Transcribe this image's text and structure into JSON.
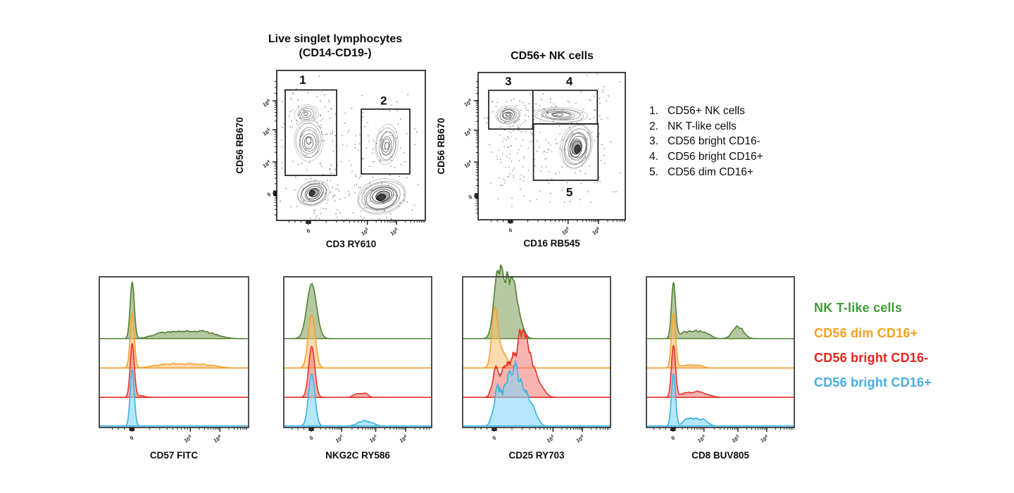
{
  "titles": {
    "plot1_line1": "Live singlet lymphocytes",
    "plot1_line2": "(CD14-CD19-)",
    "plot2": "CD56+ NK cells"
  },
  "gate_list": {
    "items": [
      {
        "num": "1.",
        "label": "CD56+ NK cells"
      },
      {
        "num": "2.",
        "label": "NK T-like cells"
      },
      {
        "num": "3.",
        "label": "CD56 bright CD16-"
      },
      {
        "num": "4.",
        "label": "CD56 bright CD16+"
      },
      {
        "num": "5.",
        "label": "CD56 dim CD16+"
      }
    ]
  },
  "legend": {
    "items": [
      {
        "label": "NK T-like cells",
        "color": "#3f9b35",
        "key": "green"
      },
      {
        "label": "CD56 dim CD16+",
        "color": "#f5a01f",
        "key": "orange"
      },
      {
        "label": "CD56 bright CD16-",
        "color": "#e8231e",
        "key": "red"
      },
      {
        "label": "CD56 bright CD16+",
        "color": "#45ade2",
        "key": "blue"
      }
    ]
  },
  "palette": {
    "green": {
      "stroke": "#4f8230",
      "fill": "rgba(110,145,70,0.50)"
    },
    "orange": {
      "stroke": "#f5a02d",
      "fill": "rgba(250,190,110,0.55)"
    },
    "red": {
      "stroke": "#e63229",
      "fill": "rgba(240,120,115,0.55)"
    },
    "blue": {
      "stroke": "#38b2e5",
      "fill": "rgba(130,215,245,0.60)"
    }
  },
  "chart_data": [
    {
      "id": "flow1",
      "type": "contour-scatter",
      "title": "Live singlet lymphocytes (CD14-CD19-)",
      "xlabel": "CD3 RY610",
      "ylabel": "CD56 RB670",
      "x_ticks": [
        {
          "label": "0",
          "pos": 0.213
        },
        {
          "label": "10",
          "exp": "5",
          "pos": 0.61
        },
        {
          "label": "10",
          "exp": "6",
          "pos": 0.807
        }
      ],
      "y_ticks": [
        {
          "label": "10",
          "exp": "6",
          "pos": 0.203
        },
        {
          "label": "10",
          "exp": "5",
          "pos": 0.396
        },
        {
          "label": "10",
          "exp": "4",
          "pos": 0.61
        },
        {
          "label": "0",
          "pos": 0.818
        }
      ],
      "gates": [
        {
          "id": "1",
          "x1": 0.057,
          "y1": 0.13,
          "x2": 0.403,
          "y2": 0.7,
          "label_x": 0.175,
          "label_y": 0.062
        },
        {
          "id": "2",
          "x1": 0.569,
          "y1": 0.258,
          "x2": 0.896,
          "y2": 0.69,
          "label_x": 0.72,
          "label_y": 0.2
        }
      ],
      "populations": [
        {
          "cx": 0.2,
          "cy": 0.29,
          "rx": 0.08,
          "ry": 0.06,
          "rot": -12,
          "rings": 5,
          "dense": 0.3,
          "dots": 35,
          "seed": 11
        },
        {
          "cx": 0.218,
          "cy": 0.475,
          "rx": 0.095,
          "ry": 0.13,
          "rot": 0,
          "rings": 7,
          "dense": 0.45,
          "dots": 55,
          "seed": 12
        },
        {
          "cx": 0.246,
          "cy": 0.82,
          "rx": 0.115,
          "ry": 0.085,
          "rot": -22,
          "rings": 8,
          "dense": 0.95,
          "dots": 70,
          "seed": 13
        },
        {
          "cx": 0.74,
          "cy": 0.495,
          "rx": 0.075,
          "ry": 0.135,
          "rot": 6,
          "rings": 7,
          "dense": 0.4,
          "dots": 55,
          "seed": 14
        },
        {
          "cx": 0.712,
          "cy": 0.84,
          "rx": 0.165,
          "ry": 0.115,
          "rot": -14,
          "rings": 9,
          "dense": 0.95,
          "dots": 80,
          "seed": 15
        }
      ],
      "scatter": [
        {
          "cx": 0.34,
          "cy": 0.46,
          "sx": 0.1,
          "sy": 0.17,
          "n": 22,
          "seed": 16
        },
        {
          "cx": 0.6,
          "cy": 0.56,
          "sx": 0.08,
          "sy": 0.14,
          "n": 15,
          "seed": 17
        }
      ]
    },
    {
      "id": "flow2",
      "type": "contour-scatter",
      "title": "CD56+ NK cells",
      "xlabel": "CD16 RB545",
      "ylabel": "CD56 RB670",
      "x_ticks": [
        {
          "label": "0",
          "pos": 0.22
        },
        {
          "label": "10",
          "exp": "5",
          "pos": 0.611
        },
        {
          "label": "10",
          "exp": "6",
          "pos": 0.818
        }
      ],
      "y_ticks": [
        {
          "label": "10",
          "exp": "6",
          "pos": 0.191
        },
        {
          "label": "10",
          "exp": "5",
          "pos": 0.392
        },
        {
          "label": "10",
          "exp": "4",
          "pos": 0.608
        },
        {
          "label": "0",
          "pos": 0.837
        }
      ],
      "gates": [
        {
          "id": "3",
          "x1": 0.072,
          "y1": 0.121,
          "x2": 0.372,
          "y2": 0.384,
          "label_x": 0.205,
          "label_y": 0.058
        },
        {
          "id": "4",
          "x1": 0.372,
          "y1": 0.121,
          "x2": 0.81,
          "y2": 0.349,
          "label_x": 0.62,
          "label_y": 0.058
        },
        {
          "id": "5",
          "x1": 0.376,
          "y1": 0.349,
          "x2": 0.815,
          "y2": 0.732,
          "label_x": 0.62,
          "label_y": 0.81
        }
      ],
      "populations": [
        {
          "cx": 0.204,
          "cy": 0.288,
          "rx": 0.085,
          "ry": 0.062,
          "rot": -8,
          "rings": 6,
          "dense": 0.8,
          "dots": 45,
          "seed": 21
        },
        {
          "cx": 0.555,
          "cy": 0.29,
          "rx": 0.19,
          "ry": 0.052,
          "rot": 2,
          "rings": 7,
          "dense": 0.4,
          "dots": 60,
          "seed": 22
        },
        {
          "cx": 0.67,
          "cy": 0.51,
          "rx": 0.105,
          "ry": 0.155,
          "rot": 12,
          "rings": 9,
          "dense": 0.85,
          "dots": 75,
          "seed": 23
        }
      ],
      "scatter": [
        {
          "cx": 0.2,
          "cy": 0.58,
          "sx": 0.06,
          "sy": 0.16,
          "n": 55,
          "seed": 24
        },
        {
          "cx": 0.42,
          "cy": 0.55,
          "sx": 0.1,
          "sy": 0.16,
          "n": 45,
          "seed": 25
        },
        {
          "cx": 0.33,
          "cy": 0.33,
          "sx": 0.1,
          "sy": 0.06,
          "n": 20,
          "seed": 26
        }
      ]
    },
    {
      "id": "hist0",
      "type": "ridgeline-histogram",
      "xlabel": "CD57 FITC",
      "x_ticks": [
        {
          "label": "0",
          "pos": 0.218
        },
        {
          "label": "10",
          "exp": "5",
          "pos": 0.61
        },
        {
          "label": "10",
          "exp": "6",
          "pos": 0.808
        }
      ],
      "rows": [
        {
          "series": "NK T-like cells",
          "color_key": "green",
          "peaks": [
            {
              "c": 0.218,
              "h": 1.0,
              "w": 0.014
            },
            {
              "c": 0.58,
              "h": 0.13,
              "w": 0.2,
              "noise": 1,
              "flat": 1
            }
          ]
        },
        {
          "series": "CD56 dim CD16+",
          "color_key": "orange",
          "peaks": [
            {
              "c": 0.218,
              "h": 0.97,
              "w": 0.014
            },
            {
              "c": 0.57,
              "h": 0.07,
              "w": 0.2,
              "noise": 1,
              "flat": 1
            }
          ]
        },
        {
          "series": "CD56 bright CD16-",
          "color_key": "red",
          "peaks": [
            {
              "c": 0.218,
              "h": 0.95,
              "w": 0.014
            },
            {
              "c": 0.27,
              "h": 0.03,
              "w": 0.03
            }
          ]
        },
        {
          "series": "CD56 bright CD16+",
          "color_key": "blue",
          "peaks": [
            {
              "c": 0.218,
              "h": 1.0,
              "w": 0.014
            }
          ]
        }
      ]
    },
    {
      "id": "hist1",
      "type": "ridgeline-histogram",
      "xlabel": "NKG2C RY586",
      "x_ticks": [
        {
          "label": "0",
          "pos": 0.186
        },
        {
          "label": "10",
          "exp": "4",
          "pos": 0.392
        },
        {
          "label": "10",
          "exp": "5",
          "pos": 0.622
        },
        {
          "label": "10",
          "exp": "6",
          "pos": 0.825
        }
      ],
      "rows": [
        {
          "series": "NK T-like cells",
          "color_key": "green",
          "peaks": [
            {
              "c": 0.186,
              "h": 0.97,
              "w": 0.033
            }
          ]
        },
        {
          "series": "CD56 dim CD16+",
          "color_key": "orange",
          "peaks": [
            {
              "c": 0.186,
              "h": 0.95,
              "w": 0.024
            }
          ]
        },
        {
          "series": "CD56 bright CD16-",
          "color_key": "red",
          "peaks": [
            {
              "c": 0.186,
              "h": 0.9,
              "w": 0.021
            },
            {
              "c": 0.52,
              "h": 0.07,
              "w": 0.05,
              "noise": 1,
              "flat": 1
            }
          ]
        },
        {
          "series": "CD56 bright CD16+",
          "color_key": "blue",
          "peaks": [
            {
              "c": 0.186,
              "h": 0.92,
              "w": 0.022
            },
            {
              "c": 0.55,
              "h": 0.1,
              "w": 0.045,
              "noise": 1
            }
          ]
        }
      ]
    },
    {
      "id": "hist2",
      "type": "ridgeline-histogram",
      "xlabel": "CD25 RY703",
      "x_ticks": [
        {
          "label": "0",
          "pos": 0.214
        },
        {
          "label": "10",
          "exp": "5",
          "pos": 0.611
        },
        {
          "label": "10",
          "exp": "6",
          "pos": 0.81
        }
      ],
      "rows": [
        {
          "series": "NK T-like cells",
          "color_key": "green",
          "peaks": [
            {
              "c": 0.225,
              "h": 0.6,
              "w": 0.025
            },
            {
              "c": 0.27,
              "h": 0.92,
              "w": 0.035,
              "noise": 1
            },
            {
              "c": 0.33,
              "h": 0.7,
              "w": 0.035,
              "noise": 1
            },
            {
              "c": 0.38,
              "h": 0.25,
              "w": 0.03
            }
          ]
        },
        {
          "series": "CD56 dim CD16+",
          "color_key": "orange",
          "peaks": [
            {
              "c": 0.214,
              "h": 0.95,
              "w": 0.02
            },
            {
              "c": 0.26,
              "h": 0.3,
              "w": 0.035
            }
          ]
        },
        {
          "series": "CD56 bright CD16-",
          "color_key": "red",
          "peaks": [
            {
              "c": 0.22,
              "h": 0.5,
              "w": 0.022,
              "noise": 1
            },
            {
              "c": 0.31,
              "h": 0.6,
              "w": 0.05,
              "noise": 1,
              "flat": 1
            },
            {
              "c": 0.38,
              "h": 0.75,
              "w": 0.025,
              "noise": 1
            },
            {
              "c": 0.42,
              "h": 0.7,
              "w": 0.022,
              "noise": 1
            },
            {
              "c": 0.46,
              "h": 0.55,
              "w": 0.03,
              "noise": 1
            },
            {
              "c": 0.52,
              "h": 0.2,
              "w": 0.035
            }
          ]
        },
        {
          "series": "CD56 bright CD16+",
          "color_key": "blue",
          "peaks": [
            {
              "c": 0.23,
              "h": 0.55,
              "w": 0.025,
              "noise": 1
            },
            {
              "c": 0.3,
              "h": 0.68,
              "w": 0.04,
              "noise": 1
            },
            {
              "c": 0.36,
              "h": 0.72,
              "w": 0.03,
              "noise": 1
            },
            {
              "c": 0.42,
              "h": 0.55,
              "w": 0.035,
              "noise": 1
            },
            {
              "c": 0.48,
              "h": 0.2,
              "w": 0.03
            }
          ]
        }
      ]
    },
    {
      "id": "hist3",
      "type": "ridgeline-histogram",
      "xlabel": "CD8 BUV805",
      "x_ticks": [
        {
          "label": "0",
          "pos": 0.18
        },
        {
          "label": "10",
          "exp": "4",
          "pos": 0.389
        },
        {
          "label": "10",
          "exp": "5",
          "pos": 0.619
        },
        {
          "label": "10",
          "exp": "6",
          "pos": 0.814
        }
      ],
      "rows": [
        {
          "series": "NK T-like cells",
          "color_key": "green",
          "peaks": [
            {
              "c": 0.18,
              "h": 0.97,
              "w": 0.014
            },
            {
              "c": 0.32,
              "h": 0.13,
              "w": 0.1,
              "noise": 1,
              "flat": 1
            },
            {
              "c": 0.62,
              "h": 0.22,
              "w": 0.035,
              "noise": 1
            }
          ]
        },
        {
          "series": "CD56 dim CD16+",
          "color_key": "orange",
          "peaks": [
            {
              "c": 0.18,
              "h": 0.97,
              "w": 0.014
            },
            {
              "c": 0.3,
              "h": 0.05,
              "w": 0.08,
              "noise": 1,
              "flat": 1
            }
          ]
        },
        {
          "series": "CD56 bright CD16-",
          "color_key": "red",
          "peaks": [
            {
              "c": 0.18,
              "h": 0.92,
              "w": 0.014
            },
            {
              "c": 0.3,
              "h": 0.09,
              "w": 0.07,
              "noise": 1,
              "flat": 1
            },
            {
              "c": 0.4,
              "h": 0.05,
              "w": 0.04
            }
          ]
        },
        {
          "series": "CD56 bright CD16+",
          "color_key": "blue",
          "peaks": [
            {
              "c": 0.18,
              "h": 0.92,
              "w": 0.014
            },
            {
              "c": 0.33,
              "h": 0.13,
              "w": 0.08,
              "noise": 1,
              "flat": 1
            }
          ]
        }
      ]
    }
  ]
}
